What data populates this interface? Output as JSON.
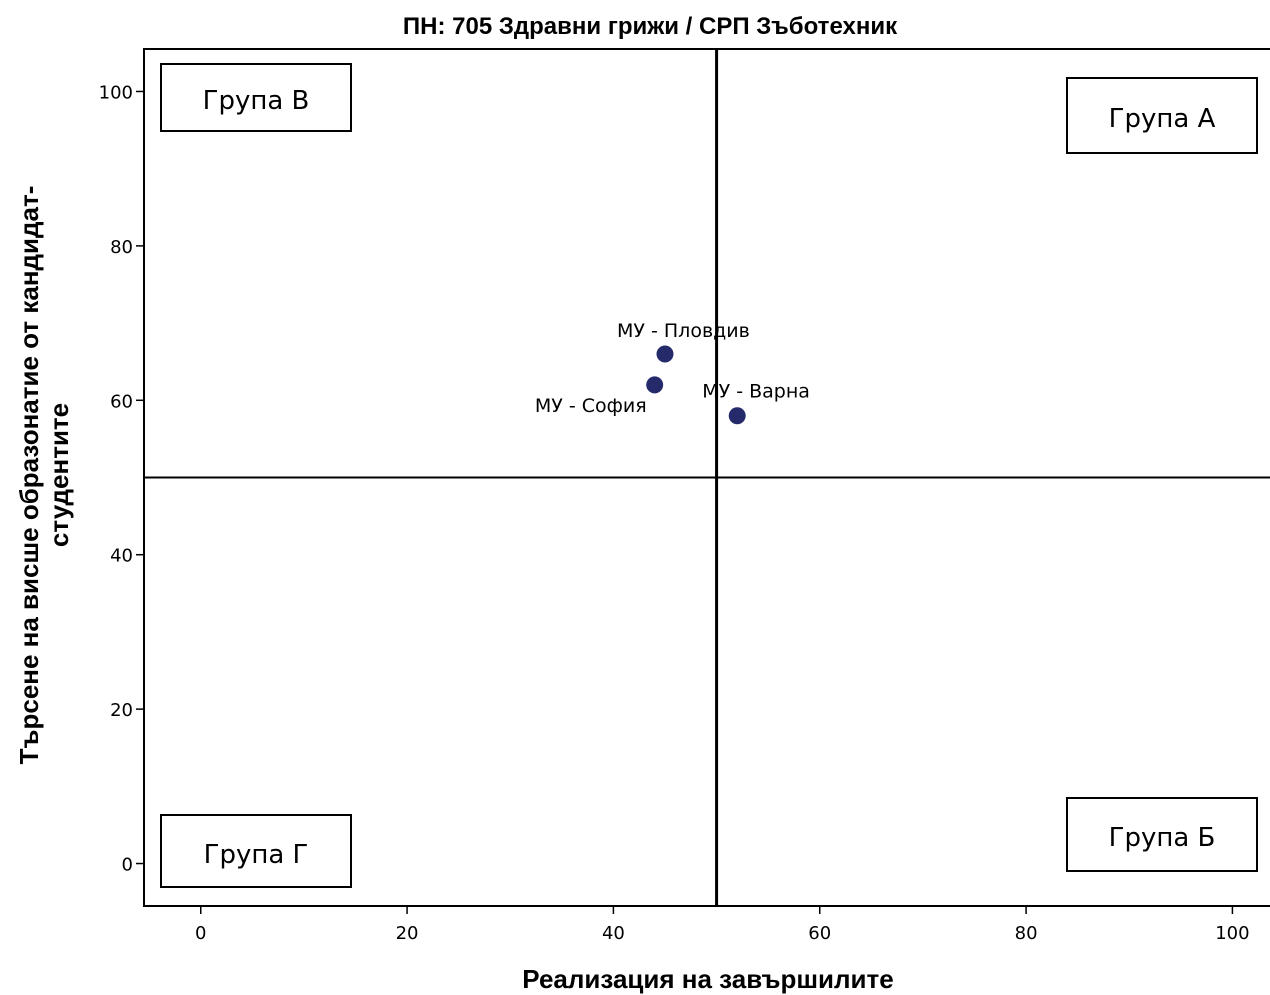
{
  "chart_data": {
    "type": "scatter",
    "title": "ПН: 705 Здравни грижи / СРП Зъботехник",
    "xlabel": "Реализация на завършилите",
    "ylabel_lines": [
      "Търсене на висше образонатие от кандидат-",
      "студентите"
    ],
    "xlim": [
      -5.5,
      105
    ],
    "ylim": [
      -5.5,
      105.5
    ],
    "x_ticks": [
      0,
      20,
      40,
      60,
      80,
      100
    ],
    "y_ticks": [
      0,
      20,
      40,
      60,
      80,
      100
    ],
    "reference_lines": {
      "x": 50,
      "y": 50
    },
    "points": [
      {
        "label": "МУ - Пловдив",
        "x": 45,
        "y": 66
      },
      {
        "label": "МУ - София",
        "x": 44,
        "y": 62
      },
      {
        "label": "МУ - Варна",
        "x": 52,
        "y": 58
      }
    ],
    "quadrant_labels": [
      "Група В",
      "Група А",
      "Група Г",
      "Група Б"
    ],
    "point_color": "#252a6b",
    "grid": false
  }
}
